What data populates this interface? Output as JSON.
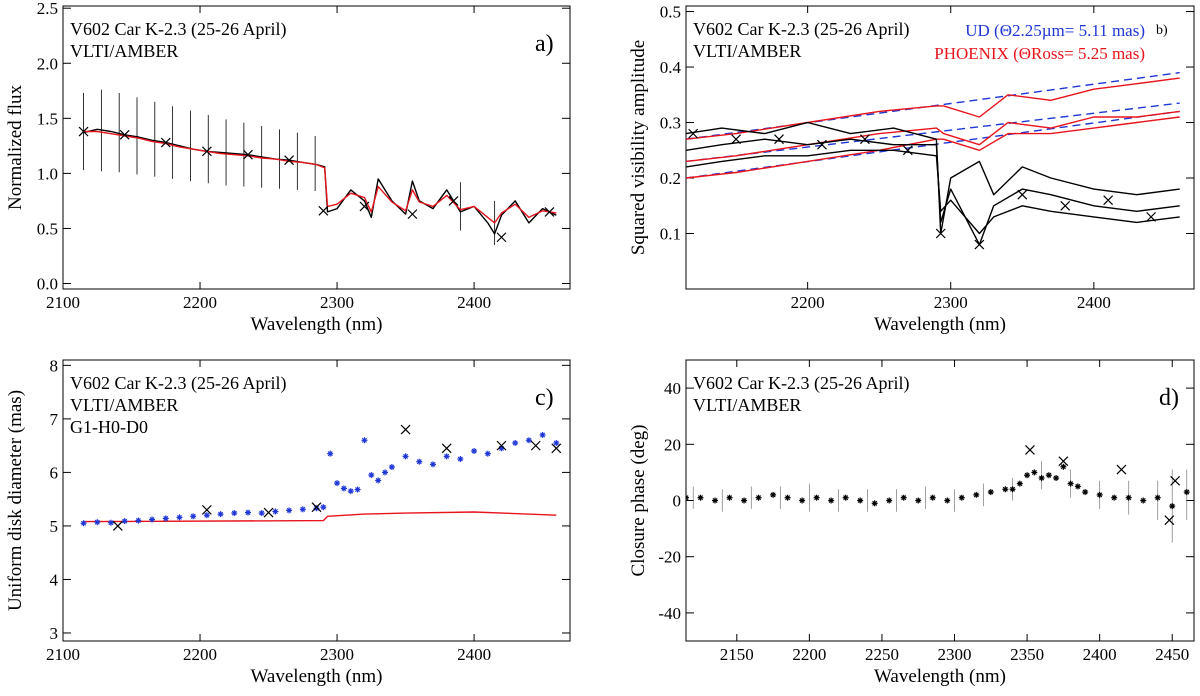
{
  "chart_data": [
    {
      "type": "line",
      "panel": "a)",
      "annotations": [
        "V602 Car K-2.3 (25-26 April)",
        "VLTI/AMBER"
      ],
      "xlabel": "Wavelength (nm)",
      "ylabel": "Normalized flux",
      "xlim": [
        2100,
        2470
      ],
      "ylim": [
        -0.05,
        2.52
      ],
      "xticks": [
        2100,
        2200,
        2300,
        2400
      ],
      "yticks": [
        0.0,
        0.5,
        1.0,
        1.5,
        2.0,
        2.5
      ],
      "ytick_format": 1,
      "series": [
        {
          "color": "#000000",
          "x": [
            2115,
            2125,
            2135,
            2145,
            2155,
            2165,
            2175,
            2185,
            2195,
            2205,
            2215,
            2225,
            2235,
            2245,
            2255,
            2265,
            2275,
            2285,
            2291,
            2293,
            2300,
            2310,
            2320,
            2325,
            2330,
            2340,
            2350,
            2355,
            2360,
            2370,
            2380,
            2390,
            2400,
            2410,
            2415,
            2420,
            2430,
            2440,
            2450,
            2460
          ],
          "y": [
            1.37,
            1.4,
            1.38,
            1.35,
            1.33,
            1.3,
            1.28,
            1.25,
            1.22,
            1.2,
            1.19,
            1.18,
            1.17,
            1.15,
            1.13,
            1.12,
            1.1,
            1.08,
            1.06,
            0.65,
            0.68,
            0.85,
            0.75,
            0.6,
            0.95,
            0.75,
            0.63,
            0.93,
            0.75,
            0.68,
            0.85,
            0.65,
            0.7,
            0.55,
            0.45,
            0.62,
            0.75,
            0.55,
            0.68,
            0.62
          ]
        },
        {
          "color": "#e8141c",
          "x": [
            2115,
            2125,
            2135,
            2145,
            2155,
            2165,
            2175,
            2185,
            2195,
            2205,
            2215,
            2225,
            2235,
            2245,
            2255,
            2265,
            2275,
            2285,
            2291,
            2293,
            2300,
            2310,
            2320,
            2325,
            2330,
            2340,
            2350,
            2355,
            2360,
            2370,
            2380,
            2390,
            2400,
            2410,
            2415,
            2420,
            2430,
            2440,
            2450,
            2460
          ],
          "y": [
            1.38,
            1.38,
            1.36,
            1.34,
            1.32,
            1.29,
            1.27,
            1.24,
            1.22,
            1.2,
            1.18,
            1.17,
            1.16,
            1.14,
            1.13,
            1.11,
            1.1,
            1.08,
            1.05,
            0.7,
            0.72,
            0.82,
            0.78,
            0.65,
            0.88,
            0.74,
            0.66,
            0.85,
            0.74,
            0.7,
            0.8,
            0.67,
            0.7,
            0.6,
            0.55,
            0.64,
            0.72,
            0.6,
            0.66,
            0.64
          ]
        }
      ],
      "error_bars": {
        "x": [
          2115,
          2128,
          2141,
          2154,
          2167,
          2180,
          2193,
          2206,
          2219,
          2232,
          2245,
          2258,
          2271,
          2284,
          2390,
          2415
        ],
        "y": [
          1.38,
          1.39,
          1.37,
          1.34,
          1.31,
          1.28,
          1.25,
          1.22,
          1.19,
          1.17,
          1.15,
          1.13,
          1.11,
          1.09,
          0.7,
          0.55
        ],
        "err": [
          0.35,
          0.37,
          0.36,
          0.35,
          0.34,
          0.33,
          0.32,
          0.31,
          0.3,
          0.29,
          0.28,
          0.27,
          0.26,
          0.25,
          0.22,
          0.2
        ]
      },
      "markers": {
        "x": [
          2115,
          2145,
          2175,
          2205,
          2235,
          2265,
          2290,
          2320,
          2355,
          2385,
          2420,
          2455
        ],
        "y": [
          1.38,
          1.35,
          1.28,
          1.2,
          1.17,
          1.12,
          0.66,
          0.7,
          0.63,
          0.75,
          0.42,
          0.65
        ]
      }
    },
    {
      "type": "line",
      "panel": "b)",
      "annotations": [
        "V602 Car K-2.3 (25-26 April)",
        "VLTI/AMBER"
      ],
      "legend": [
        {
          "text": "UD (Θ2.25µm= 5.11 mas)",
          "color": "#1f36d6"
        },
        {
          "text": "PHOENIX (ΘRoss= 5.25 mas)",
          "color": "#e8141c"
        }
      ],
      "xlabel": "Wavelength (nm)",
      "ylabel": "Squared visibility amplitude",
      "xlim": [
        2115,
        2470
      ],
      "ylim": [
        0.0,
        0.51
      ],
      "xticks": [
        2200,
        2300,
        2400
      ],
      "yticks": [
        0.1,
        0.2,
        0.3,
        0.4,
        0.5
      ],
      "ytick_format": 1,
      "series": [
        {
          "color": "#1f36d6",
          "dashed": true,
          "x": [
            2115,
            2460
          ],
          "y": [
            0.27,
            0.39
          ]
        },
        {
          "color": "#1f36d6",
          "dashed": true,
          "x": [
            2115,
            2460
          ],
          "y": [
            0.23,
            0.335
          ]
        },
        {
          "color": "#1f36d6",
          "dashed": true,
          "x": [
            2115,
            2460
          ],
          "y": [
            0.2,
            0.32
          ]
        },
        {
          "color": "#e8141c",
          "x": [
            2115,
            2150,
            2200,
            2250,
            2290,
            2295,
            2320,
            2340,
            2370,
            2400,
            2430,
            2460
          ],
          "y": [
            0.27,
            0.28,
            0.3,
            0.32,
            0.33,
            0.33,
            0.31,
            0.35,
            0.34,
            0.36,
            0.37,
            0.38
          ]
        },
        {
          "color": "#e8141c",
          "x": [
            2115,
            2150,
            2200,
            2250,
            2290,
            2295,
            2320,
            2340,
            2370,
            2400,
            2430,
            2460
          ],
          "y": [
            0.23,
            0.24,
            0.26,
            0.28,
            0.29,
            0.28,
            0.26,
            0.3,
            0.29,
            0.31,
            0.31,
            0.32
          ]
        },
        {
          "color": "#e8141c",
          "x": [
            2115,
            2150,
            2200,
            2250,
            2290,
            2295,
            2320,
            2340,
            2370,
            2400,
            2430,
            2460
          ],
          "y": [
            0.2,
            0.21,
            0.23,
            0.25,
            0.27,
            0.27,
            0.25,
            0.28,
            0.28,
            0.29,
            0.3,
            0.31
          ]
        },
        {
          "color": "#000000",
          "x": [
            2115,
            2140,
            2170,
            2200,
            2230,
            2260,
            2290,
            2293,
            2300,
            2320,
            2330,
            2350,
            2370,
            2400,
            2430,
            2460
          ],
          "y": [
            0.28,
            0.29,
            0.28,
            0.3,
            0.28,
            0.29,
            0.27,
            0.1,
            0.2,
            0.23,
            0.17,
            0.22,
            0.2,
            0.18,
            0.17,
            0.18
          ]
        },
        {
          "color": "#000000",
          "x": [
            2115,
            2140,
            2170,
            2200,
            2230,
            2260,
            2290,
            2293,
            2300,
            2320,
            2330,
            2350,
            2370,
            2400,
            2430,
            2460
          ],
          "y": [
            0.25,
            0.26,
            0.27,
            0.26,
            0.27,
            0.26,
            0.26,
            0.12,
            0.18,
            0.08,
            0.15,
            0.18,
            0.17,
            0.15,
            0.14,
            0.15
          ]
        },
        {
          "color": "#000000",
          "x": [
            2115,
            2140,
            2170,
            2200,
            2230,
            2260,
            2290,
            2293,
            2300,
            2320,
            2330,
            2350,
            2370,
            2400,
            2430,
            2460
          ],
          "y": [
            0.22,
            0.23,
            0.24,
            0.24,
            0.25,
            0.25,
            0.24,
            0.14,
            0.16,
            0.1,
            0.13,
            0.15,
            0.14,
            0.13,
            0.12,
            0.13
          ]
        }
      ],
      "markers": {
        "x": [
          2120,
          2150,
          2180,
          2210,
          2240,
          2270,
          2293,
          2320,
          2350,
          2380,
          2410,
          2440
        ],
        "y": [
          0.28,
          0.27,
          0.27,
          0.26,
          0.27,
          0.25,
          0.1,
          0.08,
          0.17,
          0.15,
          0.16,
          0.13
        ]
      }
    },
    {
      "type": "scatter",
      "panel": "c)",
      "annotations": [
        "V602 Car K-2.3 (25-26 April)",
        "VLTI/AMBER",
        "G1-H0-D0"
      ],
      "xlabel": "Wavelength (nm)",
      "ylabel": "Uniform disk diameter (mas)",
      "xlim": [
        2100,
        2470
      ],
      "ylim": [
        2.85,
        8.1
      ],
      "xticks": [
        2100,
        2200,
        2300,
        2400
      ],
      "yticks": [
        3,
        4,
        5,
        6,
        7,
        8
      ],
      "ytick_format": 0,
      "series": [
        {
          "color": "#e8141c",
          "x": [
            2115,
            2290,
            2293,
            2320,
            2350,
            2400,
            2460
          ],
          "y": [
            5.08,
            5.1,
            5.18,
            5.22,
            5.24,
            5.26,
            5.2
          ]
        },
        {
          "color": "#1f36d6",
          "marker": "*",
          "x": [
            2115,
            2125,
            2135,
            2145,
            2155,
            2165,
            2175,
            2185,
            2195,
            2205,
            2215,
            2225,
            2235,
            2245,
            2255,
            2265,
            2275,
            2285,
            2290,
            2295,
            2300,
            2305,
            2310,
            2315,
            2320,
            2325,
            2330,
            2335,
            2340,
            2350,
            2360,
            2370,
            2380,
            2390,
            2400,
            2410,
            2420,
            2430,
            2440,
            2450,
            2460
          ],
          "y": [
            5.05,
            5.07,
            5.06,
            5.09,
            5.1,
            5.12,
            5.14,
            5.16,
            5.18,
            5.2,
            5.22,
            5.24,
            5.25,
            5.24,
            5.27,
            5.29,
            5.31,
            5.33,
            5.35,
            6.35,
            5.8,
            5.7,
            5.65,
            5.68,
            6.6,
            5.95,
            5.85,
            6.0,
            6.1,
            6.3,
            6.2,
            6.15,
            6.3,
            6.25,
            6.4,
            6.35,
            6.45,
            6.55,
            6.6,
            6.7,
            6.55
          ]
        }
      ],
      "markers": {
        "x": [
          2140,
          2205,
          2250,
          2285,
          2350,
          2380,
          2420,
          2445,
          2460
        ],
        "y": [
          5.0,
          5.3,
          5.25,
          5.35,
          6.8,
          6.45,
          6.5,
          6.5,
          6.45
        ]
      }
    },
    {
      "type": "scatter",
      "panel": "d)",
      "annotations": [
        "V602 Car K-2.3 (25-26 April)",
        "VLTI/AMBER"
      ],
      "xlabel": "Wavelength (nm)",
      "ylabel": "Closure phase (deg)",
      "xlim": [
        2115,
        2465
      ],
      "ylim": [
        -50,
        50
      ],
      "xticks": [
        2150,
        2200,
        2250,
        2300,
        2350,
        2400,
        2450
      ],
      "yticks": [
        -40,
        -20,
        0,
        20,
        40
      ],
      "ytick_format": 0,
      "series": [
        {
          "color": "#000000",
          "marker": "*",
          "x": [
            2115,
            2125,
            2135,
            2145,
            2155,
            2165,
            2175,
            2185,
            2195,
            2205,
            2215,
            2225,
            2235,
            2245,
            2255,
            2265,
            2275,
            2285,
            2295,
            2305,
            2315,
            2325,
            2335,
            2340,
            2345,
            2350,
            2355,
            2360,
            2365,
            2370,
            2375,
            2380,
            2385,
            2390,
            2400,
            2410,
            2420,
            2430,
            2440,
            2450,
            2460
          ],
          "y": [
            1,
            1,
            0,
            1,
            0,
            1,
            2,
            1,
            0,
            1,
            0,
            1,
            0,
            -1,
            0,
            1,
            0,
            1,
            0,
            1,
            2,
            3,
            4,
            4,
            6,
            9,
            10,
            8,
            9,
            8,
            12,
            6,
            5,
            3,
            2,
            1,
            1,
            0,
            1,
            -2,
            3
          ]
        }
      ],
      "error_bars": {
        "x": [
          2120,
          2140,
          2160,
          2180,
          2200,
          2220,
          2240,
          2260,
          2280,
          2300,
          2320,
          2340,
          2360,
          2380,
          2400,
          2420,
          2440,
          2450,
          2460
        ],
        "y": [
          1,
          0,
          1,
          1,
          1,
          0,
          0,
          0,
          1,
          0,
          2,
          4,
          9,
          6,
          2,
          1,
          0,
          -2,
          2
        ],
        "err": [
          4,
          4,
          4,
          4,
          5,
          4,
          4,
          4,
          4,
          4,
          4,
          4,
          5,
          5,
          5,
          6,
          7,
          13,
          9
        ]
      },
      "markers": {
        "x": [
          2352,
          2375,
          2415,
          2448,
          2452
        ],
        "y": [
          18,
          14,
          11,
          -7,
          7
        ]
      }
    }
  ]
}
